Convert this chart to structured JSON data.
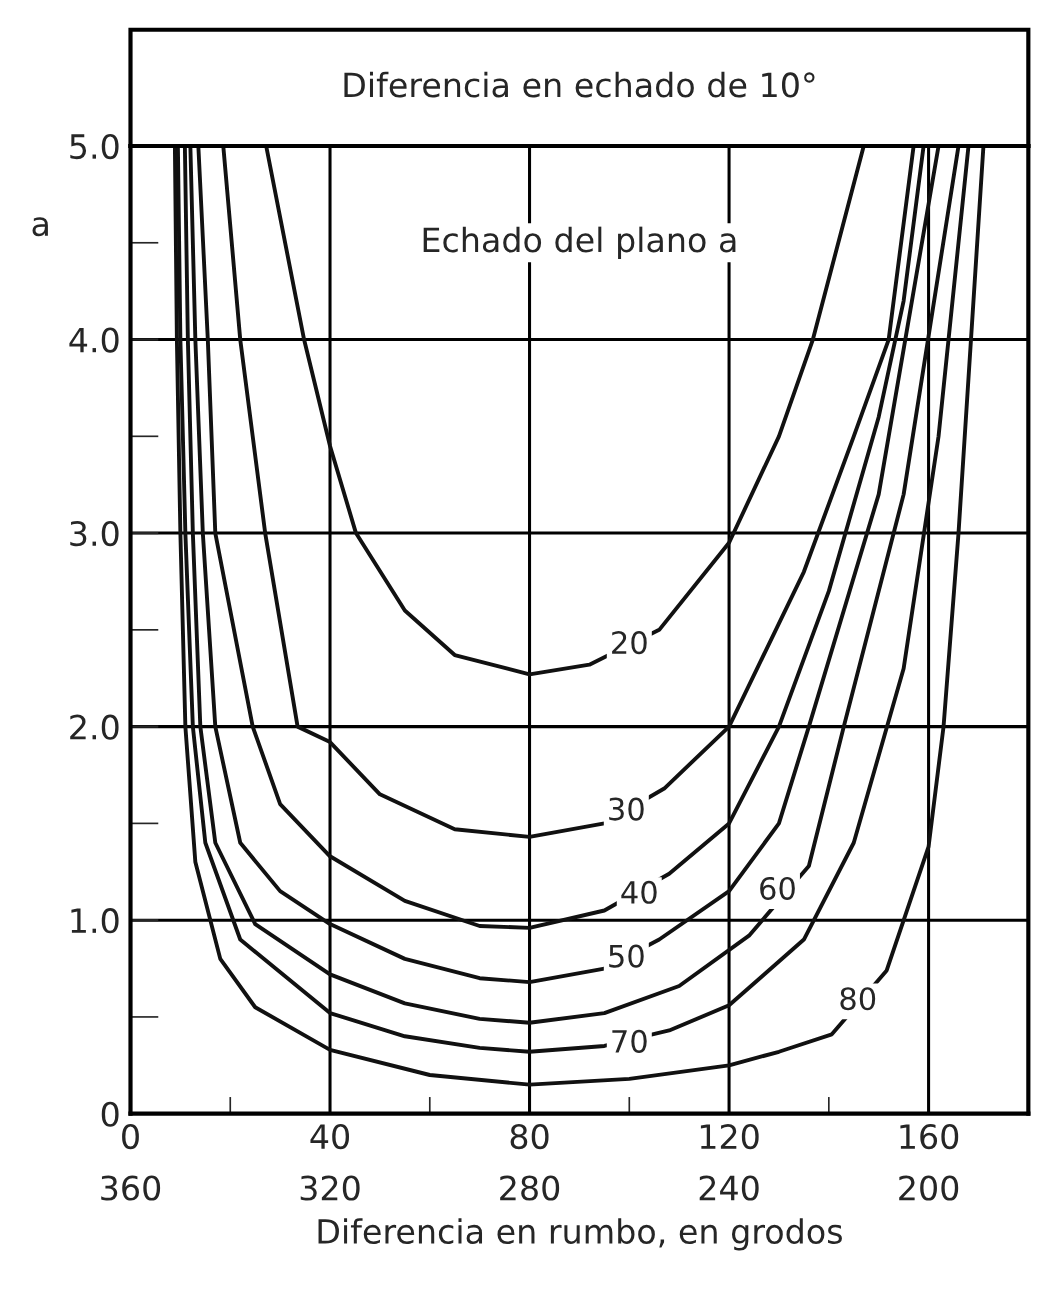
{
  "chart_data": {
    "type": "line",
    "title": "Diferencia en echado de 10°",
    "xlabel": "Diferencia en rumbo, en grodos",
    "ylabel": "a",
    "xlim": [
      0,
      180
    ],
    "ylim": [
      0,
      5.0
    ],
    "xticks": [
      0,
      {
        "value": 20,
        "label": null
      },
      40,
      {
        "value": 60,
        "label": null
      },
      80,
      {
        "value": 100,
        "label": null
      },
      120,
      {
        "value": 140,
        "label": null
      },
      160
    ],
    "x2lim": [
      360,
      180
    ],
    "x2ticks": [
      360,
      320,
      280,
      240,
      200
    ],
    "yticks": [
      0,
      {
        "value": 0.5,
        "label": null
      },
      {
        "value": 1.0,
        "label": "1.0"
      },
      {
        "value": 1.5,
        "label": null
      },
      {
        "value": 2.0,
        "label": "2.0"
      },
      {
        "value": 2.5,
        "label": null
      },
      {
        "value": 3.0,
        "label": "3.0"
      },
      {
        "value": 3.5,
        "label": null
      },
      {
        "value": 4.0,
        "label": "4.0"
      },
      {
        "value": 4.5,
        "label": null
      },
      {
        "value": 5.0,
        "label": "5.0"
      }
    ],
    "grid": true,
    "legend": false,
    "marker": "none",
    "line_style": "solid",
    "series": [
      {
        "color": "#111111",
        "x": [
          27.2,
          34.8,
          40,
          45.2,
          55,
          65,
          80,
          92,
          106,
          120,
          130,
          136.8,
          147
        ],
        "values": [
          5,
          4,
          3.45,
          3.0,
          2.6,
          2.37,
          2.27,
          2.32,
          2.5,
          2.95,
          3.5,
          4,
          5
        ]
      },
      {
        "color": "#111111",
        "x": [
          18.6,
          22,
          27,
          33.5,
          40,
          50,
          65,
          80,
          95,
          107,
          120,
          135,
          145,
          152,
          157
        ],
        "values": [
          5,
          4,
          3,
          2.0,
          1.92,
          1.65,
          1.47,
          1.43,
          1.5,
          1.68,
          2.0,
          2.8,
          3.5,
          4,
          5
        ]
      },
      {
        "color": "#111111",
        "x": [
          13.6,
          15.5,
          17,
          24.5,
          30,
          40,
          55,
          70,
          80,
          95,
          108,
          120,
          130,
          140,
          150,
          155,
          159
        ],
        "values": [
          5,
          4,
          3,
          2,
          1.6,
          1.33,
          1.1,
          0.97,
          0.96,
          1.05,
          1.24,
          1.5,
          2.0,
          2.7,
          3.6,
          4.2,
          5
        ]
      },
      {
        "color": "#111111",
        "x": [
          12,
          13,
          14.5,
          17,
          22,
          30,
          40,
          55,
          70,
          80,
          95,
          106,
          120,
          130,
          136,
          150,
          162
        ],
        "values": [
          5,
          4,
          3,
          2,
          1.4,
          1.15,
          0.98,
          0.8,
          0.7,
          0.68,
          0.75,
          0.9,
          1.15,
          1.5,
          2.0,
          3.2,
          5
        ]
      },
      {
        "color": "#111111",
        "x": [
          10.9,
          11.5,
          12.5,
          14,
          17,
          25,
          40,
          55,
          70,
          80,
          95,
          110,
          124,
          136,
          143,
          155,
          166
        ],
        "values": [
          5,
          4,
          3,
          2,
          1.4,
          0.98,
          0.72,
          0.57,
          0.49,
          0.47,
          0.52,
          0.66,
          0.92,
          1.28,
          2.0,
          3.2,
          5
        ]
      },
      {
        "color": "#111111",
        "x": [
          9.5,
          10,
          11,
          12.5,
          15,
          22,
          40,
          55,
          70,
          80,
          95,
          108,
          120,
          135,
          145,
          155,
          162,
          168
        ],
        "values": [
          5,
          4,
          3,
          2,
          1.4,
          0.9,
          0.52,
          0.4,
          0.34,
          0.32,
          0.35,
          0.43,
          0.56,
          0.9,
          1.4,
          2.3,
          3.5,
          5
        ]
      },
      {
        "color": "#111111",
        "x": [
          8.9,
          9.3,
          10,
          11,
          13,
          18,
          25,
          40,
          60,
          80,
          100,
          120,
          130,
          140.6,
          151.6,
          160,
          163,
          166,
          171
        ],
        "values": [
          5,
          4,
          3,
          2,
          1.3,
          0.8,
          0.55,
          0.33,
          0.2,
          0.15,
          0.18,
          0.25,
          0.32,
          0.41,
          0.74,
          1.38,
          2.0,
          3,
          5
        ]
      }
    ],
    "annotations": [
      {
        "text": "20",
        "x": 100,
        "y": 2.42
      },
      {
        "text": "30",
        "x": 99.4,
        "y": 1.56
      },
      {
        "text": "40",
        "x": 102,
        "y": 1.13
      },
      {
        "text": "50",
        "x": 99.4,
        "y": 0.8
      },
      {
        "text": "60",
        "x": 129.7,
        "y": 1.15
      },
      {
        "text": "70",
        "x": 100,
        "y": 0.36
      },
      {
        "text": "80",
        "x": 145.8,
        "y": 0.58
      },
      "Echado del plano a"
    ]
  }
}
